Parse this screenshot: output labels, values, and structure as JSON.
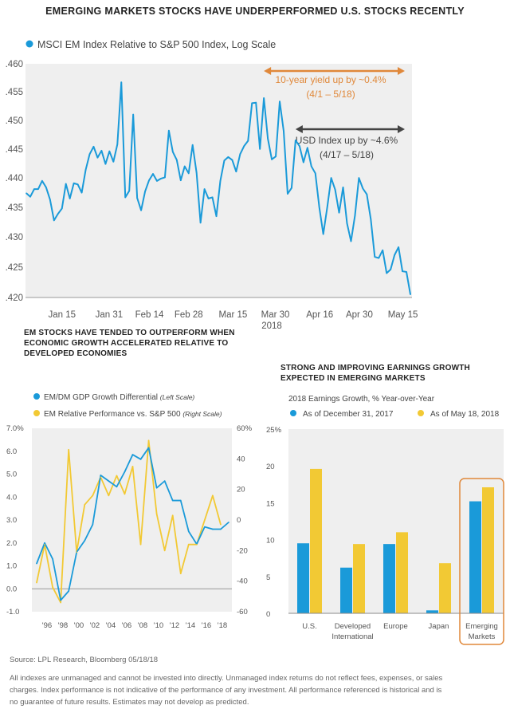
{
  "title": "EMERGING MARKETS STOCKS HAVE UNDERPERFORMED U.S. STOCKS RECENTLY",
  "colors": {
    "blue": "#1a9ad9",
    "yellow": "#f2c934",
    "orange": "#e0883a",
    "dark": "#444444",
    "plot_bg": "#efefef"
  },
  "chart_data": [
    {
      "type": "line",
      "legend": "MSCI EM Index Relative to S&P 500 Index, Log Scale",
      "log_scale": true,
      "ylim": [
        0.42,
        0.46
      ],
      "y_ticks": [
        ".460",
        ".455",
        ".450",
        ".445",
        ".440",
        ".435",
        ".430",
        ".425",
        ".420"
      ],
      "x_ticks": [
        {
          "label": "Jan 15",
          "index": 9
        },
        {
          "label": "Jan 31",
          "index": 20.9
        },
        {
          "label": "Feb 14",
          "index": 31.1
        },
        {
          "label": "Feb 28",
          "index": 41
        },
        {
          "label": "Mar 15",
          "index": 52.2
        },
        {
          "label": "Mar 30",
          "index": 62.9
        },
        {
          "label": "Apr 16",
          "index": 74.1
        },
        {
          "label": "Apr 30",
          "index": 84.1
        },
        {
          "label": "May 15",
          "index": 95.1
        }
      ],
      "year_label": "2018",
      "values": [
        0.4374,
        0.4368,
        0.4381,
        0.4381,
        0.4395,
        0.4384,
        0.4363,
        0.4328,
        0.4339,
        0.4348,
        0.439,
        0.4365,
        0.4391,
        0.4389,
        0.4375,
        0.4414,
        0.4441,
        0.4454,
        0.4435,
        0.4447,
        0.4424,
        0.4446,
        0.4428,
        0.4458,
        0.4567,
        0.4367,
        0.4378,
        0.451,
        0.4366,
        0.4345,
        0.4377,
        0.4396,
        0.4407,
        0.4395,
        0.4399,
        0.4401,
        0.4482,
        0.4445,
        0.4431,
        0.4396,
        0.442,
        0.4408,
        0.4457,
        0.4409,
        0.4324,
        0.4381,
        0.4365,
        0.4367,
        0.4335,
        0.4395,
        0.443,
        0.4436,
        0.4431,
        0.4411,
        0.4441,
        0.4455,
        0.4464,
        0.453,
        0.4531,
        0.445,
        0.4539,
        0.4468,
        0.4432,
        0.4437,
        0.4533,
        0.4481,
        0.4373,
        0.4383,
        0.4465,
        0.4455,
        0.4427,
        0.4452,
        0.442,
        0.4408,
        0.435,
        0.4305,
        0.435,
        0.44,
        0.438,
        0.4341,
        0.4384,
        0.4323,
        0.4293,
        0.4336,
        0.44,
        0.4382,
        0.4372,
        0.433,
        0.4267,
        0.4265,
        0.4278,
        0.424,
        0.4246,
        0.427,
        0.4283,
        0.4243,
        0.4242,
        0.4205
      ],
      "annotations": [
        {
          "line1": "10-year yield up by ~0.4%",
          "line2": "(4/1 – 5/18)",
          "color": "#e0883a",
          "from_index": 61,
          "to_index": 97
        },
        {
          "line1": "USD Index up by ~4.6%",
          "line2": "(4/17 – 5/18)",
          "color": "#444444",
          "from_index": 69,
          "to_index": 97
        }
      ]
    },
    {
      "type": "line",
      "title": "EM STOCKS HAVE TENDED TO OUTPERFORM WHEN ECONOMIC GROWTH ACCELERATED RELATIVE TO DEVELOPED ECONOMIES",
      "title_lines": [
        "EM STOCKS HAVE TENDED TO OUTPERFORM WHEN",
        "ECONOMIC GROWTH ACCELERATED RELATIVE TO",
        "DEVELOPED ECONOMIES"
      ],
      "x_ticks": [
        "'96",
        "'98",
        "'00",
        "'02",
        "'04",
        "'06",
        "'08",
        "'10",
        "'12",
        "'14",
        "'16",
        "'18"
      ],
      "left_ticks": [
        "7.0%",
        "6.0",
        "5.0",
        "4.0",
        "3.0",
        "2.0",
        "1.0",
        "0.0",
        "-1.0"
      ],
      "right_ticks": [
        "60%",
        "40",
        "20",
        "0",
        "-20",
        "-40",
        "-60"
      ],
      "ylim_left": [
        -1,
        7
      ],
      "ylim_right": [
        -60,
        60
      ],
      "series": [
        {
          "name": "EM/DM GDP Growth Differential",
          "scale_note": "(Left Scale)",
          "axis": "left",
          "x": [
            1995,
            1996,
            1997,
            1998,
            1999,
            2000,
            2001,
            2002,
            2003,
            2004,
            2005,
            2006,
            2007,
            2008,
            2009,
            2010,
            2011,
            2012,
            2013,
            2014,
            2015,
            2016,
            2017,
            2018,
            2019
          ],
          "values": [
            1.1,
            2.0,
            1.3,
            -0.5,
            -0.1,
            1.6,
            2.1,
            2.8,
            4.95,
            4.7,
            4.45,
            5.1,
            5.85,
            5.65,
            6.15,
            4.4,
            4.7,
            3.85,
            3.85,
            2.5,
            1.95,
            2.7,
            2.6,
            2.6,
            2.9
          ]
        },
        {
          "name": "EM Relative Performance vs. S&P 500",
          "scale_note": "(Right Scale)",
          "axis": "right",
          "x": [
            1995,
            1996,
            1997,
            1998,
            1999,
            2000,
            2001,
            2002,
            2003,
            2004,
            2005,
            2006,
            2007,
            2008,
            2009,
            2010,
            2011,
            2012,
            2013,
            2014,
            2015,
            2016,
            2017,
            2018
          ],
          "values": [
            -41,
            -16,
            -44,
            -54,
            46,
            -21,
            10,
            16,
            28,
            16,
            29,
            17,
            35,
            -16,
            52,
            4,
            -20,
            3,
            -35,
            -16,
            -16,
            0,
            16,
            -3
          ]
        }
      ]
    },
    {
      "type": "bar",
      "title": "STRONG AND IMPROVING EARNINGS GROWTH EXPECTED IN EMERGING MARKETS",
      "title_lines": [
        "STRONG AND IMPROVING EARNINGS GROWTH",
        "EXPECTED IN EMERGING MARKETS"
      ],
      "subtitle": "2018 Earnings Growth, % Year-over-Year",
      "categories": [
        [
          "U.S.",
          ""
        ],
        [
          "Developed",
          "International"
        ],
        [
          "Europe",
          ""
        ],
        [
          "Japan",
          ""
        ],
        [
          "Emerging",
          "Markets"
        ]
      ],
      "y_ticks": [
        "25%",
        "20",
        "15",
        "10",
        "5",
        "0"
      ],
      "ylim": [
        0,
        25
      ],
      "highlight_category": "Emerging Markets",
      "series": [
        {
          "name": "As of December 31, 2017",
          "values": [
            9.5,
            6.2,
            9.4,
            0.4,
            15.2
          ]
        },
        {
          "name": "As of May 18, 2018",
          "values": [
            19.6,
            9.4,
            11.0,
            6.8,
            17.1
          ]
        }
      ]
    }
  ],
  "footer": {
    "source": "Source: LPL Research, Bloomberg   05/18/18",
    "disclaimer_lines": [
      "All indexes are unmanaged and cannot be invested into directly. Unmanaged index returns do not reflect fees, expenses, or sales",
      "charges. Index performance is not indicative of the performance of any investment. All performance referenced is historical and is",
      "no guarantee of future results. Estimates may not develop as predicted."
    ]
  }
}
